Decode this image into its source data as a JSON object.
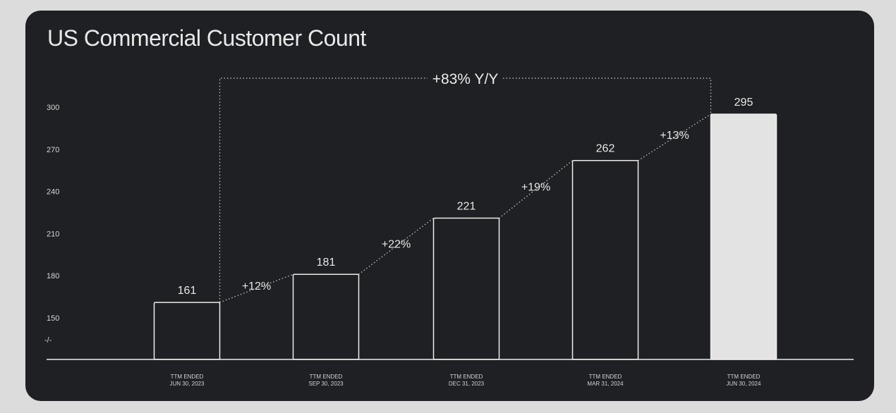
{
  "chart_data": {
    "type": "bar",
    "title": "US Commercial Customer Count",
    "categories": [
      [
        "TTM ENDED",
        "JUN 30, 2023"
      ],
      [
        "TTM ENDED",
        "SEP 30, 2023"
      ],
      [
        "TTM ENDED",
        "DEC 31, 2023"
      ],
      [
        "TTM ENDED",
        "MAR 31, 2024"
      ],
      [
        "TTM ENDED",
        "JUN 30, 2024"
      ]
    ],
    "values": [
      161,
      181,
      221,
      262,
      295
    ],
    "value_labels": [
      "161",
      "181",
      "221",
      "262",
      "295"
    ],
    "growth_labels": [
      "+12%",
      "+22%",
      "+19%",
      "+13%"
    ],
    "overall_growth_label": "+83% Y/Y",
    "y_ticks": [
      150,
      180,
      210,
      240,
      270,
      300
    ],
    "y_tick_labels": [
      "150",
      "180",
      "210",
      "240",
      "270",
      "300"
    ],
    "axis_break_symbol": "-/‐",
    "ylim": [
      120,
      300
    ],
    "axis_break": true,
    "highlight_last_bar": true,
    "colors": {
      "background": "#1e2023",
      "bar_outline": "#ececec",
      "highlight_fill": "#e3e3e3",
      "text": "#e9e9e9"
    }
  }
}
